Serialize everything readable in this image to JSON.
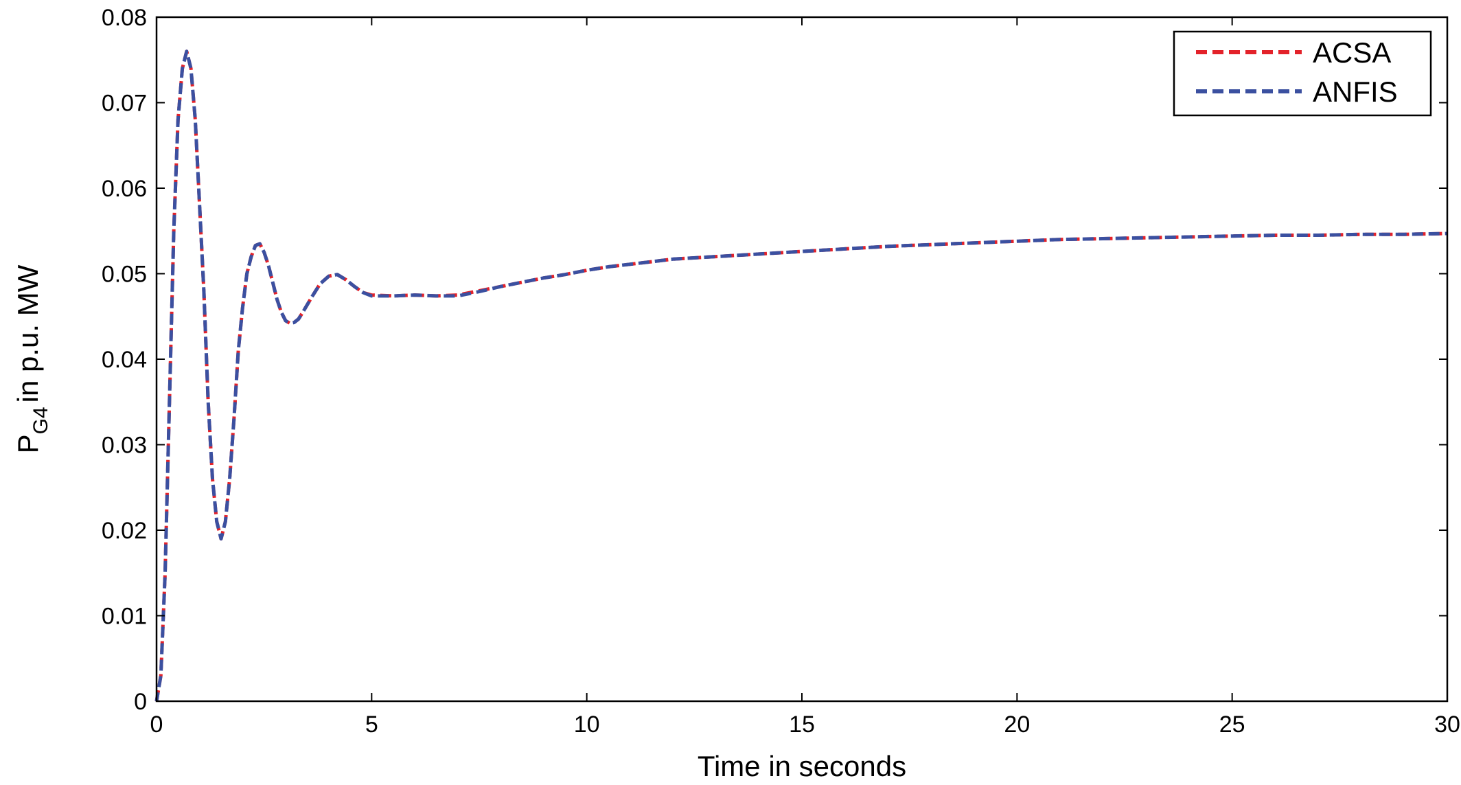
{
  "chart_data": {
    "type": "line",
    "xlabel": "Time in seconds",
    "ylabel": {
      "main": "P",
      "sub": "G4",
      "rest": "in p.u. MW"
    },
    "xlim": [
      0,
      30
    ],
    "ylim": [
      0,
      0.08
    ],
    "xticks": [
      0,
      5,
      10,
      15,
      20,
      25,
      30
    ],
    "xtick_labels": [
      "0",
      "5",
      "10",
      "15",
      "20",
      "25",
      "30"
    ],
    "yticks": [
      0,
      0.01,
      0.02,
      0.03,
      0.04,
      0.05,
      0.06,
      0.07,
      0.08
    ],
    "ytick_labels": [
      "0",
      "0.01",
      "0.02",
      "0.03",
      "0.04",
      "0.05",
      "0.06",
      "0.07",
      "0.08"
    ],
    "grid": false,
    "legend_position": "top-right",
    "series": [
      {
        "name": "ACSA",
        "color": "#e3222a",
        "style": "dashed",
        "points": [
          [
            0,
            0
          ],
          [
            0.1,
            0.003
          ],
          [
            0.2,
            0.015
          ],
          [
            0.3,
            0.035
          ],
          [
            0.4,
            0.055
          ],
          [
            0.5,
            0.068
          ],
          [
            0.6,
            0.074
          ],
          [
            0.7,
            0.076
          ],
          [
            0.8,
            0.074
          ],
          [
            0.9,
            0.068
          ],
          [
            1.0,
            0.058
          ],
          [
            1.1,
            0.048
          ],
          [
            1.2,
            0.035
          ],
          [
            1.3,
            0.026
          ],
          [
            1.4,
            0.021
          ],
          [
            1.5,
            0.019
          ],
          [
            1.6,
            0.021
          ],
          [
            1.7,
            0.026
          ],
          [
            1.8,
            0.033
          ],
          [
            1.9,
            0.041
          ],
          [
            2.0,
            0.046
          ],
          [
            2.1,
            0.05
          ],
          [
            2.2,
            0.052
          ],
          [
            2.3,
            0.0533
          ],
          [
            2.4,
            0.0535
          ],
          [
            2.5,
            0.0525
          ],
          [
            2.6,
            0.051
          ],
          [
            2.7,
            0.049
          ],
          [
            2.8,
            0.047
          ],
          [
            2.9,
            0.0455
          ],
          [
            3.0,
            0.0445
          ],
          [
            3.1,
            0.0442
          ],
          [
            3.2,
            0.0443
          ],
          [
            3.3,
            0.0447
          ],
          [
            3.4,
            0.0455
          ],
          [
            3.6,
            0.0472
          ],
          [
            3.8,
            0.0488
          ],
          [
            4.0,
            0.0497
          ],
          [
            4.2,
            0.0499
          ],
          [
            4.4,
            0.0493
          ],
          [
            4.6,
            0.0485
          ],
          [
            4.8,
            0.0478
          ],
          [
            5.0,
            0.0475
          ],
          [
            5.5,
            0.0474
          ],
          [
            6.0,
            0.0475
          ],
          [
            6.5,
            0.0474
          ],
          [
            7.0,
            0.0475
          ],
          [
            7.5,
            0.048
          ],
          [
            8.0,
            0.0485
          ],
          [
            8.5,
            0.049
          ],
          [
            9.0,
            0.0495
          ],
          [
            9.5,
            0.0499
          ],
          [
            10,
            0.0504
          ],
          [
            10.5,
            0.0508
          ],
          [
            11,
            0.0511
          ],
          [
            11.5,
            0.0514
          ],
          [
            12,
            0.0517
          ],
          [
            13,
            0.052
          ],
          [
            14,
            0.0523
          ],
          [
            15,
            0.0526
          ],
          [
            16,
            0.0529
          ],
          [
            17,
            0.0532
          ],
          [
            18,
            0.0534
          ],
          [
            19,
            0.0536
          ],
          [
            20,
            0.0538
          ],
          [
            21,
            0.054
          ],
          [
            22,
            0.0541
          ],
          [
            23,
            0.0542
          ],
          [
            24,
            0.0543
          ],
          [
            25,
            0.0544
          ],
          [
            26,
            0.0545
          ],
          [
            27,
            0.0545
          ],
          [
            28,
            0.0546
          ],
          [
            29,
            0.0546
          ],
          [
            30,
            0.0547
          ]
        ]
      },
      {
        "name": "ANFIS",
        "color": "#3b50a0",
        "style": "dashed",
        "points": [
          [
            0,
            0
          ],
          [
            0.1,
            0.003
          ],
          [
            0.2,
            0.015
          ],
          [
            0.3,
            0.035
          ],
          [
            0.4,
            0.055
          ],
          [
            0.5,
            0.068
          ],
          [
            0.6,
            0.074
          ],
          [
            0.7,
            0.076
          ],
          [
            0.8,
            0.074
          ],
          [
            0.9,
            0.068
          ],
          [
            1.0,
            0.058
          ],
          [
            1.1,
            0.048
          ],
          [
            1.2,
            0.035
          ],
          [
            1.3,
            0.026
          ],
          [
            1.4,
            0.021
          ],
          [
            1.5,
            0.019
          ],
          [
            1.6,
            0.021
          ],
          [
            1.7,
            0.026
          ],
          [
            1.8,
            0.033
          ],
          [
            1.9,
            0.041
          ],
          [
            2.0,
            0.046
          ],
          [
            2.1,
            0.05
          ],
          [
            2.2,
            0.052
          ],
          [
            2.3,
            0.0533
          ],
          [
            2.4,
            0.0535
          ],
          [
            2.5,
            0.0525
          ],
          [
            2.6,
            0.051
          ],
          [
            2.7,
            0.049
          ],
          [
            2.8,
            0.047
          ],
          [
            2.9,
            0.0455
          ],
          [
            3.0,
            0.0445
          ],
          [
            3.1,
            0.0442
          ],
          [
            3.2,
            0.0443
          ],
          [
            3.3,
            0.0447
          ],
          [
            3.4,
            0.0455
          ],
          [
            3.6,
            0.0472
          ],
          [
            3.8,
            0.0488
          ],
          [
            4.0,
            0.0497
          ],
          [
            4.2,
            0.0499
          ],
          [
            4.4,
            0.0493
          ],
          [
            4.6,
            0.0485
          ],
          [
            4.8,
            0.0478
          ],
          [
            5.0,
            0.0474
          ],
          [
            5.5,
            0.0474
          ],
          [
            6.0,
            0.0475
          ],
          [
            6.5,
            0.0474
          ],
          [
            7.0,
            0.0474
          ],
          [
            7.5,
            0.0479
          ],
          [
            8.0,
            0.0485
          ],
          [
            8.5,
            0.049
          ],
          [
            9.0,
            0.0495
          ],
          [
            9.5,
            0.0499
          ],
          [
            10,
            0.0504
          ],
          [
            10.5,
            0.0508
          ],
          [
            11,
            0.0511
          ],
          [
            11.5,
            0.0514
          ],
          [
            12,
            0.0517
          ],
          [
            13,
            0.052
          ],
          [
            14,
            0.0523
          ],
          [
            15,
            0.0526
          ],
          [
            16,
            0.0529
          ],
          [
            17,
            0.0532
          ],
          [
            18,
            0.0534
          ],
          [
            19,
            0.0536
          ],
          [
            20,
            0.0538
          ],
          [
            21,
            0.054
          ],
          [
            22,
            0.0541
          ],
          [
            23,
            0.0542
          ],
          [
            24,
            0.0543
          ],
          [
            25,
            0.0544
          ],
          [
            26,
            0.0545
          ],
          [
            27,
            0.0545
          ],
          [
            28,
            0.0546
          ],
          [
            29,
            0.0546
          ],
          [
            30,
            0.0547
          ]
        ]
      }
    ]
  }
}
